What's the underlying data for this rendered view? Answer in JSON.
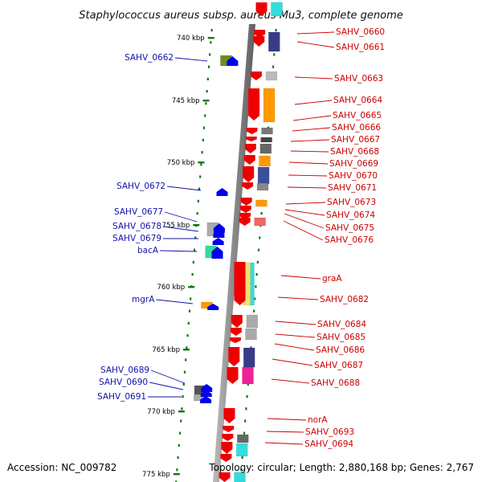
{
  "title": "Staphylococcus aureus subsp. aureus Mu3, complete genome",
  "accession": "Accession: NC_009782",
  "topology": "Topology: circular; Length: 2,880,168 bp; Genes: 2,767",
  "kbp_labels": [
    "740 kbp",
    "745 kbp",
    "750 kbp",
    "755 kbp",
    "760 kbp",
    "765 kbp",
    "770 kbp",
    "775 kbp"
  ],
  "left_genes": [
    "SAHV_0662",
    "SAHV_0672",
    "SAHV_0677",
    "SAHV_0678",
    "SAHV_0679",
    "bacA",
    "mgrA",
    "SAHV_0689",
    "SAHV_0690",
    "SAHV_0691"
  ],
  "right_genes": [
    "SAHV_0660",
    "SAHV_0661",
    "SAHV_0663",
    "SAHV_0664",
    "SAHV_0665",
    "SAHV_0666",
    "SAHV_0667",
    "SAHV_0668",
    "SAHV_0669",
    "SAHV_0670",
    "SAHV_0671",
    "SAHV_0673",
    "SAHV_0674",
    "SAHV_0675",
    "SAHV_0676",
    "graA",
    "SAHV_0682",
    "SAHV_0684",
    "SAHV_0685",
    "SAHV_0686",
    "SAHV_0687",
    "SAHV_0688",
    "norA",
    "SAHV_0693",
    "SAHV_0694"
  ],
  "colors": {
    "backbone": "#888888",
    "forward_cds": "#ee0000",
    "reverse_cds": "#0000ee",
    "left_label": "#1111aa",
    "right_label": "#cc0000",
    "tick": "#117711"
  }
}
